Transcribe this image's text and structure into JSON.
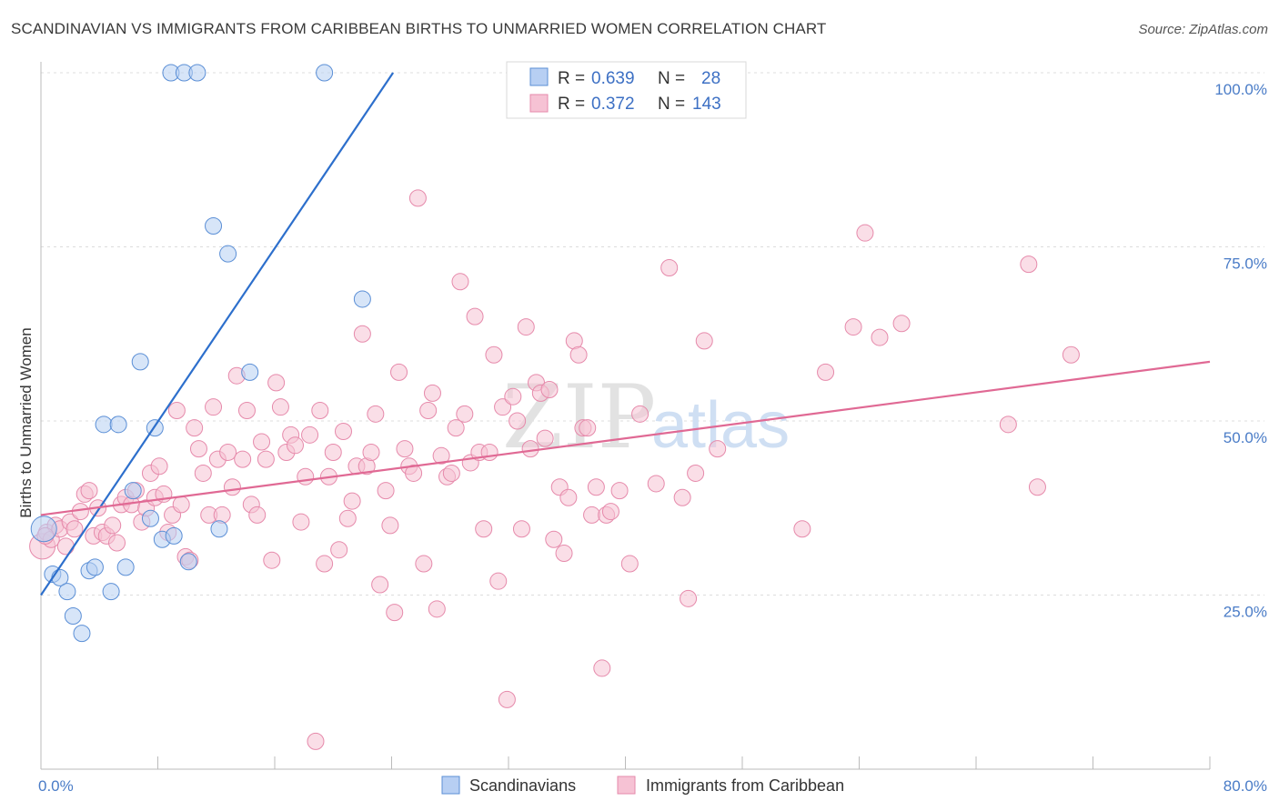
{
  "title": "SCANDINAVIAN VS IMMIGRANTS FROM CARIBBEAN BIRTHS TO UNMARRIED WOMEN CORRELATION CHART",
  "source": "Source: ZipAtlas.com",
  "watermark": {
    "zip": "ZIP",
    "atlas": "atlas"
  },
  "colors": {
    "blue_fill": "#b7cff3",
    "blue_stroke": "#5b8fd6",
    "blue_line": "#2d6fcc",
    "pink_fill": "#f6c2d4",
    "pink_stroke": "#e68aab",
    "pink_line": "#e06994",
    "tick_text": "#4a7cc7",
    "grid": "#dddddd"
  },
  "legend_top": [
    {
      "r_label": "R = ",
      "r_value": "0.639",
      "n_label": "N = ",
      "n_value": "28",
      "color": "blue"
    },
    {
      "r_label": "R = ",
      "r_value": "0.372",
      "n_label": "N = ",
      "n_value": "143",
      "color": "pink"
    }
  ],
  "chart_data": {
    "type": "scatter",
    "ylabel": "Births to Unmarried Women",
    "xlim": [
      0,
      80
    ],
    "ylim": [
      0,
      100
    ],
    "x_tick_labels": [
      "0.0%",
      "80.0%"
    ],
    "y_tick_labels": [
      {
        "value": 100,
        "label": "100.0%"
      },
      {
        "value": 75,
        "label": "75.0%"
      },
      {
        "value": 50,
        "label": "50.0%"
      },
      {
        "value": 25,
        "label": "25.0%"
      }
    ],
    "grid": true,
    "series": [
      {
        "name": "Scandinavians",
        "color": "blue",
        "trend": {
          "x0": 0,
          "y0": 25,
          "x1": 24.1,
          "y1": 100
        },
        "points": [
          [
            0.2,
            34.5
          ],
          [
            0.8,
            28.0
          ],
          [
            1.3,
            27.5
          ],
          [
            1.8,
            25.5
          ],
          [
            2.2,
            22.0
          ],
          [
            2.8,
            19.5
          ],
          [
            3.3,
            28.5
          ],
          [
            3.7,
            29.0
          ],
          [
            4.3,
            49.5
          ],
          [
            4.8,
            25.5
          ],
          [
            5.3,
            49.5
          ],
          [
            5.8,
            29.0
          ],
          [
            6.3,
            40.0
          ],
          [
            6.8,
            58.5
          ],
          [
            7.5,
            36.0
          ],
          [
            7.8,
            49.0
          ],
          [
            8.3,
            33.0
          ],
          [
            9.1,
            33.5
          ],
          [
            10.1,
            29.8
          ],
          [
            11.8,
            78.0
          ],
          [
            12.2,
            34.5
          ],
          [
            12.8,
            74.0
          ],
          [
            14.3,
            57.0
          ],
          [
            8.9,
            100
          ],
          [
            9.8,
            100
          ],
          [
            10.7,
            100
          ],
          [
            19.4,
            100
          ],
          [
            22.0,
            67.5
          ]
        ]
      },
      {
        "name": "Immigrants from Caribbean",
        "color": "pink",
        "trend": {
          "x0": 0,
          "y0": 36.5,
          "x1": 80,
          "y1": 58.5
        },
        "points": [
          [
            0.1,
            32.0
          ],
          [
            0.4,
            34.0
          ],
          [
            0.7,
            33.0
          ],
          [
            1.0,
            35.0
          ],
          [
            1.3,
            34.5
          ],
          [
            1.7,
            32.0
          ],
          [
            2.0,
            35.5
          ],
          [
            2.3,
            34.5
          ],
          [
            2.7,
            37.0
          ],
          [
            3.0,
            39.5
          ],
          [
            3.3,
            40.0
          ],
          [
            3.6,
            33.5
          ],
          [
            3.9,
            37.5
          ],
          [
            4.2,
            34.0
          ],
          [
            4.5,
            33.5
          ],
          [
            4.9,
            35.0
          ],
          [
            5.2,
            32.5
          ],
          [
            5.5,
            38.0
          ],
          [
            5.8,
            39.0
          ],
          [
            6.2,
            38.0
          ],
          [
            6.5,
            40.0
          ],
          [
            6.9,
            35.5
          ],
          [
            7.2,
            37.5
          ],
          [
            7.5,
            42.5
          ],
          [
            7.8,
            39.0
          ],
          [
            8.1,
            43.5
          ],
          [
            8.4,
            39.5
          ],
          [
            8.7,
            34.0
          ],
          [
            9.0,
            36.5
          ],
          [
            9.3,
            51.5
          ],
          [
            9.6,
            38.0
          ],
          [
            9.9,
            30.5
          ],
          [
            10.2,
            30.0
          ],
          [
            10.5,
            49.0
          ],
          [
            10.8,
            46.0
          ],
          [
            11.1,
            42.5
          ],
          [
            11.5,
            36.5
          ],
          [
            11.8,
            52.0
          ],
          [
            12.1,
            44.5
          ],
          [
            12.4,
            36.5
          ],
          [
            12.8,
            45.5
          ],
          [
            13.1,
            40.5
          ],
          [
            13.4,
            56.5
          ],
          [
            13.8,
            44.5
          ],
          [
            14.1,
            51.5
          ],
          [
            14.4,
            38.0
          ],
          [
            14.8,
            36.5
          ],
          [
            15.1,
            47.0
          ],
          [
            15.4,
            44.5
          ],
          [
            15.8,
            30.0
          ],
          [
            16.1,
            55.5
          ],
          [
            16.4,
            52.0
          ],
          [
            16.8,
            45.5
          ],
          [
            17.1,
            48.0
          ],
          [
            17.4,
            46.5
          ],
          [
            17.8,
            35.5
          ],
          [
            18.1,
            42.0
          ],
          [
            18.4,
            48.0
          ],
          [
            18.8,
            4.0
          ],
          [
            19.1,
            51.5
          ],
          [
            19.4,
            29.5
          ],
          [
            19.7,
            42.0
          ],
          [
            20.0,
            45.5
          ],
          [
            20.4,
            31.5
          ],
          [
            20.7,
            48.5
          ],
          [
            21.0,
            36.0
          ],
          [
            21.3,
            38.5
          ],
          [
            21.6,
            43.5
          ],
          [
            22.0,
            62.5
          ],
          [
            22.3,
            43.5
          ],
          [
            22.6,
            45.5
          ],
          [
            22.9,
            51.0
          ],
          [
            23.2,
            26.5
          ],
          [
            23.6,
            40.0
          ],
          [
            23.9,
            35.0
          ],
          [
            24.2,
            22.5
          ],
          [
            24.5,
            57.0
          ],
          [
            24.9,
            46.0
          ],
          [
            25.2,
            43.5
          ],
          [
            25.5,
            42.5
          ],
          [
            25.8,
            82.0
          ],
          [
            26.2,
            29.5
          ],
          [
            26.5,
            51.5
          ],
          [
            26.8,
            54.0
          ],
          [
            27.1,
            23.0
          ],
          [
            27.4,
            45.0
          ],
          [
            27.8,
            42.0
          ],
          [
            28.1,
            42.5
          ],
          [
            28.4,
            49.0
          ],
          [
            28.7,
            70.0
          ],
          [
            29.0,
            51.0
          ],
          [
            29.4,
            44.0
          ],
          [
            29.7,
            65.0
          ],
          [
            30.0,
            45.5
          ],
          [
            30.3,
            34.5
          ],
          [
            30.7,
            45.5
          ],
          [
            31.0,
            59.5
          ],
          [
            31.3,
            27.0
          ],
          [
            31.6,
            52.0
          ],
          [
            31.9,
            10.0
          ],
          [
            32.3,
            53.5
          ],
          [
            32.6,
            50.0
          ],
          [
            32.9,
            34.5
          ],
          [
            33.2,
            63.5
          ],
          [
            33.5,
            46.0
          ],
          [
            33.9,
            55.5
          ],
          [
            34.2,
            54.0
          ],
          [
            34.5,
            47.5
          ],
          [
            34.8,
            54.5
          ],
          [
            35.1,
            33.0
          ],
          [
            35.5,
            40.5
          ],
          [
            35.8,
            31.0
          ],
          [
            36.1,
            39.0
          ],
          [
            36.5,
            61.5
          ],
          [
            36.8,
            59.5
          ],
          [
            37.1,
            49.0
          ],
          [
            37.4,
            49.0
          ],
          [
            37.7,
            36.5
          ],
          [
            38.0,
            40.5
          ],
          [
            38.4,
            14.5
          ],
          [
            38.7,
            36.5
          ],
          [
            39.0,
            37.0
          ],
          [
            39.6,
            40.0
          ],
          [
            40.3,
            29.5
          ],
          [
            41.0,
            51.0
          ],
          [
            42.1,
            41.0
          ],
          [
            43.0,
            72.0
          ],
          [
            43.9,
            39.0
          ],
          [
            44.3,
            24.5
          ],
          [
            44.8,
            42.5
          ],
          [
            45.4,
            61.5
          ],
          [
            46.3,
            46.0
          ],
          [
            52.1,
            34.5
          ],
          [
            53.7,
            57.0
          ],
          [
            55.6,
            63.5
          ],
          [
            56.4,
            77.0
          ],
          [
            57.4,
            62.0
          ],
          [
            58.9,
            64.0
          ],
          [
            66.2,
            49.5
          ],
          [
            67.6,
            72.5
          ],
          [
            68.2,
            40.5
          ],
          [
            70.5,
            59.5
          ],
          [
            0.3,
            33.5
          ]
        ]
      }
    ]
  },
  "legend_bottom": [
    {
      "label": "Scandinavians",
      "color": "blue"
    },
    {
      "label": "Immigrants from Caribbean",
      "color": "pink"
    }
  ]
}
